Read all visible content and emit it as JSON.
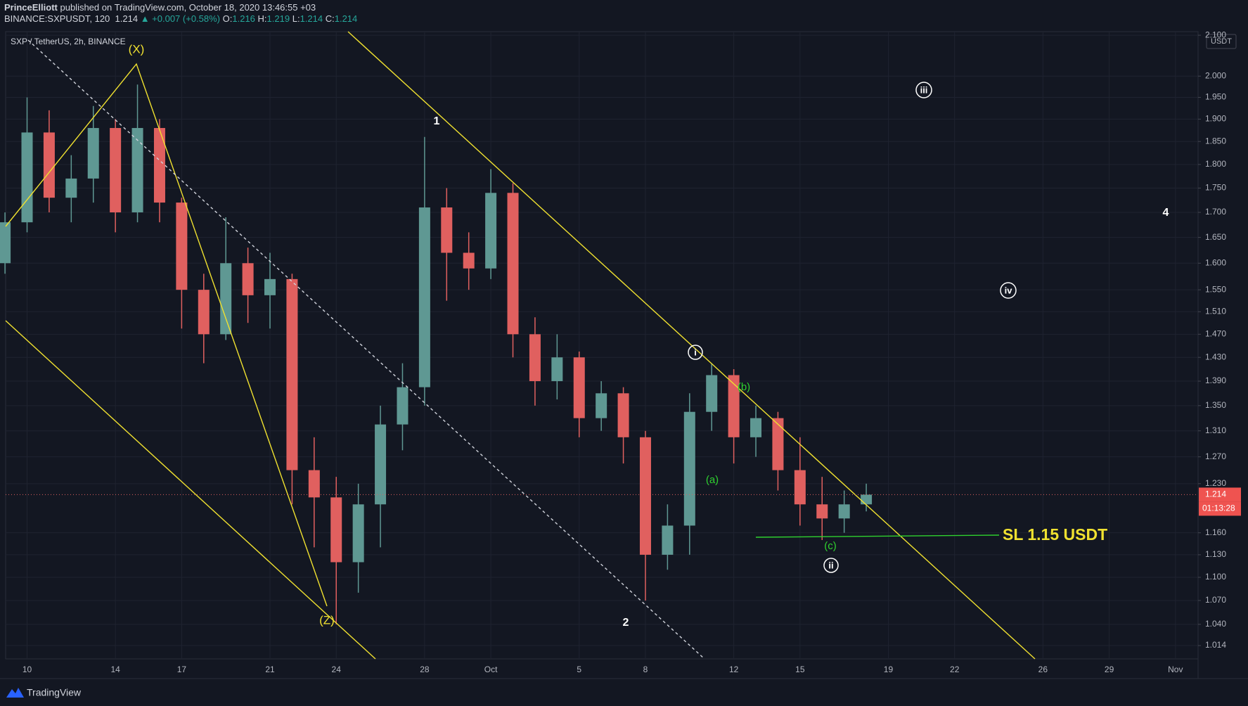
{
  "header": {
    "author": "PrinceElliott",
    "published": "published on TradingView.com, October 18, 2020 13:46:55 +03",
    "symbol": "BINANCE:SXPUSDT, 120",
    "price": "1.214",
    "change": "▲ +0.007 (+0.58%)",
    "ohlc": [
      {
        "key": "O:",
        "value": "1.216"
      },
      {
        "key": "H:",
        "value": "1.219"
      },
      {
        "key": "L:",
        "value": "1.214"
      },
      {
        "key": "C:",
        "value": "1.214"
      }
    ]
  },
  "chart_data": {
    "type": "candlestick",
    "legend_text": "SXP / TetherUS, 2h, BINANCE",
    "currency": "USDT",
    "last_price": 1.214,
    "countdown": "01:13:28",
    "log": true,
    "grid": true,
    "up_color": "#5f9893",
    "down_color": "#e0605f",
    "categories": [
      null,
      "10",
      null,
      null,
      null,
      "14",
      null,
      null,
      "17",
      null,
      null,
      null,
      "21",
      null,
      null,
      "24",
      null,
      null,
      null,
      "28",
      null,
      null,
      "Oct",
      null,
      null,
      null,
      "5",
      null,
      null,
      "8",
      null,
      null,
      null,
      "12",
      null,
      null,
      "15",
      null,
      null,
      null,
      "19",
      null,
      null,
      "22",
      null,
      null,
      null,
      "26",
      null,
      null,
      "29",
      null,
      null,
      "Nov",
      null
    ],
    "open": [
      1.6,
      1.68,
      1.87,
      1.73,
      1.77,
      1.88,
      1.7,
      1.88,
      1.72,
      1.55,
      1.47,
      1.6,
      1.54,
      1.57,
      1.25,
      1.21,
      1.12,
      1.2,
      1.32,
      1.38,
      1.71,
      1.62,
      1.59,
      1.74,
      1.47,
      1.39,
      1.43,
      1.33,
      1.37,
      1.3,
      1.13,
      1.17,
      1.34,
      1.4,
      1.3,
      1.33,
      1.25,
      1.2,
      1.18,
      1.2,
      null,
      null,
      null,
      null,
      null,
      null,
      null,
      null,
      null,
      null,
      null,
      null,
      null,
      null,
      null
    ],
    "high": [
      1.7,
      1.95,
      1.92,
      1.82,
      1.93,
      1.9,
      1.98,
      1.9,
      1.73,
      1.58,
      1.69,
      1.63,
      1.62,
      1.58,
      1.3,
      1.24,
      1.23,
      1.35,
      1.42,
      1.86,
      1.75,
      1.66,
      1.79,
      1.76,
      1.5,
      1.47,
      1.44,
      1.39,
      1.38,
      1.31,
      1.2,
      1.37,
      1.42,
      1.41,
      1.35,
      1.34,
      1.3,
      1.24,
      1.22,
      1.23,
      null,
      null,
      null,
      null,
      null,
      null,
      null,
      null,
      null,
      null,
      null,
      null,
      null,
      null,
      null
    ],
    "low": [
      1.58,
      1.66,
      1.7,
      1.68,
      1.72,
      1.66,
      1.68,
      1.68,
      1.48,
      1.42,
      1.46,
      1.49,
      1.48,
      1.2,
      1.14,
      1.04,
      1.08,
      1.14,
      1.28,
      1.35,
      1.53,
      1.55,
      1.57,
      1.43,
      1.35,
      1.36,
      1.3,
      1.31,
      1.26,
      1.07,
      1.11,
      1.13,
      1.31,
      1.26,
      1.27,
      1.22,
      1.17,
      1.15,
      1.16,
      1.19,
      null,
      null,
      null,
      null,
      null,
      null,
      null,
      null,
      null,
      null,
      null,
      null,
      null,
      null,
      null
    ],
    "close": [
      1.68,
      1.87,
      1.73,
      1.77,
      1.88,
      1.7,
      1.88,
      1.72,
      1.55,
      1.47,
      1.6,
      1.54,
      1.57,
      1.25,
      1.21,
      1.12,
      1.2,
      1.32,
      1.38,
      1.71,
      1.62,
      1.59,
      1.74,
      1.47,
      1.39,
      1.43,
      1.33,
      1.37,
      1.3,
      1.13,
      1.17,
      1.34,
      1.4,
      1.3,
      1.33,
      1.25,
      1.2,
      1.18,
      1.2,
      1.214,
      null,
      null,
      null,
      null,
      null,
      null,
      null,
      null,
      null,
      null,
      null,
      null,
      null,
      null,
      null
    ],
    "ylim": [
      0.998,
      2.109
    ],
    "yticks": [
      {
        "value": 2.1,
        "label": "2.100"
      },
      {
        "value": 2,
        "label": "2.000"
      },
      {
        "value": 1.95,
        "label": "1.950"
      },
      {
        "value": 1.9,
        "label": "1.900"
      },
      {
        "value": 1.85,
        "label": "1.850"
      },
      {
        "value": 1.8,
        "label": "1.800"
      },
      {
        "value": 1.75,
        "label": "1.750"
      },
      {
        "value": 1.7,
        "label": "1.700"
      },
      {
        "value": 1.65,
        "label": "1.650"
      },
      {
        "value": 1.6,
        "label": "1.600"
      },
      {
        "value": 1.55,
        "label": "1.550"
      },
      {
        "value": 1.51,
        "label": "1.510"
      },
      {
        "value": 1.47,
        "label": "1.470"
      },
      {
        "value": 1.43,
        "label": "1.430"
      },
      {
        "value": 1.39,
        "label": "1.390"
      },
      {
        "value": 1.35,
        "label": "1.350"
      },
      {
        "value": 1.31,
        "label": "1.310"
      },
      {
        "value": 1.27,
        "label": "1.270"
      },
      {
        "value": 1.23,
        "label": "1.230"
      },
      {
        "value": 1.16,
        "label": "1.160"
      },
      {
        "value": 1.13,
        "label": "1.130"
      },
      {
        "value": 1.1,
        "label": "1.100"
      },
      {
        "value": 1.07,
        "label": "1.070"
      },
      {
        "value": 1.04,
        "label": "1.040"
      },
      1.014
    ],
    "annotations": [
      "(X)",
      "(Z)",
      "1",
      "2",
      "i",
      "ii",
      "iii",
      "iv",
      "4",
      "(a)",
      "(b)",
      "(c)",
      "SL 1.15 USDT"
    ]
  },
  "footer": {
    "brand": "TradingView"
  }
}
